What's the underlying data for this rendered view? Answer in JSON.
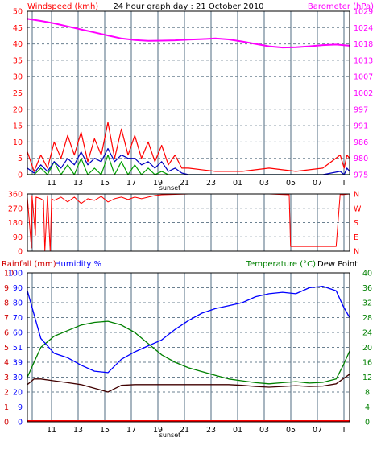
{
  "header": {
    "windspeed_label": "Windspeed (kmh)",
    "graph_title": "24 hour graph day : 21 October 2010",
    "barometer_label": "Barometer (hPa)",
    "rainfall_label": "Rainfall (mm)",
    "humidity_label": "Humidity %",
    "temperature_label": "Temperature (°C)",
    "dewpoint_label": "Dew Point"
  },
  "colors": {
    "wind": "#ff0000",
    "wind_avg": "#0000c0",
    "wind_green": "#00a000",
    "barometer": "#ff00ff",
    "direction": "#ff0000",
    "humidity": "#0000ff",
    "temperature": "#008000",
    "dewpoint": "#400000",
    "rain": "#ff0000",
    "rain_axis": "#d00000",
    "grid": "#4f6b80"
  },
  "chart_data": [
    {
      "type": "line",
      "name": "wind-and-barometer",
      "x_ticks": [
        "11",
        "13",
        "15",
        "17",
        "19",
        "21",
        "23",
        "01",
        "03",
        "05",
        "07",
        "I"
      ],
      "x_annotation": "sunset",
      "y_left_ticks": [
        "0",
        "5",
        "10",
        "15",
        "20",
        "25",
        "30",
        "35",
        "40",
        "45",
        "50"
      ],
      "y_right_ticks": [
        "975",
        "980",
        "986",
        "991",
        "997",
        "1002",
        "1007",
        "1013",
        "1018",
        "1024",
        "1029"
      ],
      "ylim_left": [
        0,
        50
      ],
      "ylim_right": [
        975,
        1029
      ],
      "grid": true,
      "series": [
        {
          "axis": "right",
          "x": [
            0,
            1,
            2,
            3,
            4,
            5,
            6,
            7,
            8,
            9,
            10,
            11,
            12,
            13,
            14,
            15,
            16,
            17,
            18,
            19,
            20,
            21,
            22,
            23,
            24
          ],
          "values": [
            1026.5,
            1025.8,
            1025.0,
            1024.0,
            1023.0,
            1022.0,
            1021.0,
            1020.0,
            1019.5,
            1019.2,
            1019.3,
            1019.4,
            1019.6,
            1019.8,
            1020.0,
            1019.7,
            1019.0,
            1018.2,
            1017.4,
            1017.0,
            1017.1,
            1017.4,
            1017.8,
            1018.0,
            1017.6
          ]
        },
        {
          "x": [
            0,
            0.5,
            1,
            1.5,
            2,
            2.5,
            3,
            3.5,
            4,
            4.5,
            5,
            5.5,
            6,
            6.5,
            7,
            7.5,
            8,
            8.5,
            9,
            9.5,
            10,
            10.5,
            11,
            11.5,
            12,
            14,
            16,
            18,
            20,
            22,
            23.3,
            23.6,
            23.8,
            24
          ],
          "values": [
            7,
            1,
            6,
            2,
            10,
            5,
            12,
            6,
            13,
            4,
            11,
            6,
            16,
            5,
            14,
            6,
            12,
            5,
            10,
            4,
            9,
            3,
            6,
            2,
            2,
            1,
            1,
            2,
            1,
            2,
            6,
            2,
            6,
            5
          ]
        },
        {
          "x": [
            0,
            0.5,
            1,
            1.5,
            2,
            2.5,
            3,
            3.5,
            4,
            4.5,
            5,
            5.5,
            6,
            6.5,
            7,
            7.5,
            8,
            8.5,
            9,
            9.5,
            10,
            10.5,
            11,
            11.5,
            12,
            14,
            16,
            18,
            20,
            22,
            23.3,
            23.6,
            23.8,
            24
          ],
          "values": [
            2,
            0.5,
            3,
            1,
            4,
            2,
            5,
            3,
            7,
            3,
            5,
            4,
            8,
            4,
            6,
            5,
            5,
            3,
            4,
            2,
            4,
            1,
            2,
            0.5,
            0,
            0,
            0,
            0,
            0,
            0,
            1,
            0,
            2,
            1
          ]
        },
        {
          "x": [
            0,
            0.5,
            1,
            1.5,
            2,
            2.5,
            3,
            3.5,
            4,
            4.5,
            5,
            5.5,
            6,
            6.5,
            7,
            7.5,
            8,
            8.5,
            9,
            9.5,
            10,
            10.5,
            11,
            11.5,
            12,
            14,
            16,
            18,
            20,
            22,
            23.3,
            23.6,
            23.8,
            24
          ],
          "values": [
            0,
            0,
            2,
            0,
            4,
            0,
            3,
            0,
            5,
            0,
            2,
            0,
            6,
            0,
            4,
            0,
            3,
            0,
            2,
            0,
            1,
            0,
            0,
            0,
            0,
            0,
            0,
            0,
            0,
            0,
            0,
            0,
            0,
            0
          ]
        }
      ]
    },
    {
      "type": "line",
      "name": "wind-direction",
      "y_left_ticks": [
        "0",
        "90",
        "180",
        "270",
        "360"
      ],
      "y_right_ticks": [
        "N",
        "E",
        "S",
        "W",
        "N"
      ],
      "ylim": [
        0,
        360
      ],
      "grid": true,
      "series": [
        {
          "x": [
            0,
            0.3,
            0.35,
            0.6,
            0.65,
            1,
            1.2,
            1.3,
            1.5,
            1.7,
            1.8,
            2,
            2.5,
            3,
            3.5,
            4,
            4.5,
            5,
            5.5,
            6,
            6.5,
            7,
            7.5,
            8,
            8.5,
            9,
            9.5,
            10,
            12,
            14,
            16,
            18,
            19.5,
            19.6,
            23,
            23.3,
            23.4,
            24
          ],
          "values": [
            340,
            20,
            350,
            100,
            340,
            330,
            320,
            0,
            350,
            0,
            330,
            320,
            340,
            310,
            340,
            300,
            330,
            320,
            345,
            310,
            330,
            340,
            325,
            340,
            330,
            340,
            350,
            355,
            360,
            360,
            360,
            360,
            355,
            30,
            30,
            360,
            355,
            360
          ]
        }
      ]
    },
    {
      "type": "line",
      "name": "rain-humidity-temperature",
      "y_rain_ticks": [
        "0",
        "1",
        "2",
        "3",
        "4",
        "5",
        "6",
        "7",
        "8",
        "9",
        "10"
      ],
      "y_humidity_ticks": [
        "0",
        "9",
        "20",
        "30",
        "39",
        "51",
        "60",
        "70",
        "80",
        "90",
        "100"
      ],
      "y_temperature_ticks": [
        "0",
        "4",
        "8",
        "12",
        "16",
        "20",
        "24",
        "28",
        "32",
        "36",
        "40"
      ],
      "ylim_temperature": [
        0,
        40
      ],
      "ylim_humidity": [
        0,
        100
      ],
      "grid": true,
      "series": [
        {
          "axis": "humidity",
          "x": [
            0,
            0.5,
            1,
            2,
            3,
            4,
            5,
            6,
            7,
            8,
            9,
            10,
            11,
            12,
            13,
            14,
            15,
            16,
            17,
            18,
            19,
            20,
            21,
            22,
            23,
            23.5,
            24
          ],
          "values": [
            88,
            72,
            56,
            46,
            43,
            38,
            34,
            33,
            42,
            47,
            51,
            55,
            62,
            68,
            73,
            76,
            78,
            80,
            84,
            86,
            87,
            86,
            90,
            91,
            88,
            78,
            70
          ]
        },
        {
          "axis": "temperature",
          "x": [
            0,
            0.5,
            1,
            2,
            3,
            4,
            5,
            6,
            7,
            8,
            9,
            10,
            11,
            12,
            13,
            14,
            15,
            16,
            17,
            18,
            19,
            20,
            21,
            22,
            23,
            23.5,
            24
          ],
          "values": [
            12,
            16,
            20,
            23,
            24.5,
            26,
            26.7,
            27,
            26,
            24,
            21,
            18,
            16,
            14.5,
            13.5,
            12.5,
            11.5,
            11,
            10.5,
            10.2,
            10.5,
            10.8,
            10.4,
            10.6,
            11.5,
            15,
            19
          ]
        },
        {
          "axis": "temperature",
          "x": [
            0,
            0.5,
            1,
            2,
            3,
            4,
            5,
            6,
            7,
            8,
            9,
            10,
            11,
            12,
            13,
            14,
            15,
            16,
            17,
            18,
            19,
            20,
            21,
            22,
            23,
            23.5,
            24
          ],
          "values": [
            10,
            11.5,
            11.5,
            11,
            10.5,
            10,
            9,
            8,
            9.8,
            10,
            10,
            10,
            10,
            10,
            10,
            10,
            10,
            9.8,
            9.5,
            9.3,
            9.5,
            9.7,
            9.5,
            9.6,
            10.2,
            11.5,
            12.8
          ]
        },
        {
          "axis": "rain",
          "x": [
            0,
            24
          ],
          "values": [
            0,
            0
          ]
        }
      ]
    }
  ]
}
